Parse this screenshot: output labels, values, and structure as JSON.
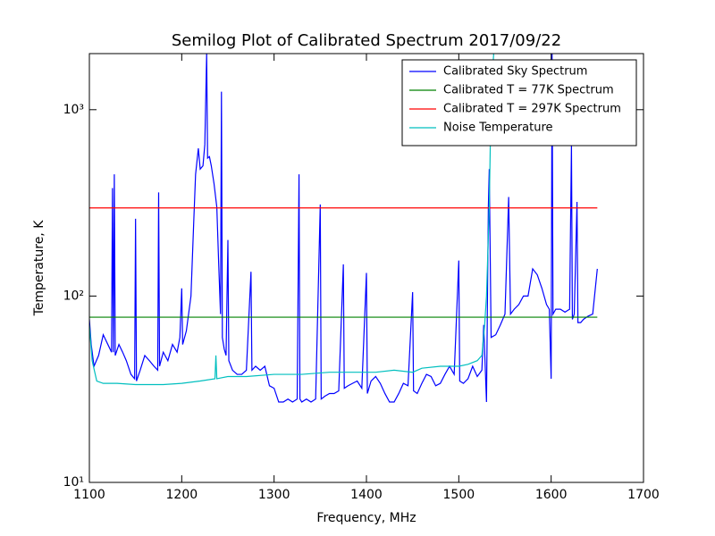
{
  "chart_data": {
    "type": "line",
    "title": "Semilog Plot of Calibrated Spectrum 2017/09/22",
    "x_label": "Frequency, MHz",
    "y_label": "Temperature, K",
    "log_y": true,
    "legend": "upper right",
    "xlim": [
      1100,
      1700
    ],
    "xticks": [
      1100,
      1200,
      1300,
      1400,
      1500,
      1600,
      1700
    ],
    "ylim": [
      10,
      2000
    ],
    "yticks": [
      {
        "value": 10,
        "label": "10¹"
      },
      {
        "value": 100,
        "label": "10²"
      },
      {
        "value": 1000,
        "label": "10³"
      }
    ],
    "series": [
      {
        "name": "Calibrated Sky Spectrum",
        "color": "#0000ff",
        "x": [
          1100,
          1102,
          1105,
          1110,
          1115,
          1120,
          1124,
          1125,
          1126,
          1127,
          1128,
          1132,
          1136,
          1140,
          1145,
          1149,
          1150,
          1151,
          1155,
          1160,
          1165,
          1170,
          1174,
          1175,
          1176,
          1180,
          1185,
          1190,
          1195,
          1198,
          1200,
          1201,
          1205,
          1210,
          1213,
          1215,
          1218,
          1220,
          1223,
          1225,
          1227,
          1228,
          1230,
          1232,
          1235,
          1238,
          1240,
          1242,
          1243,
          1244,
          1246,
          1248,
          1250,
          1251,
          1255,
          1260,
          1265,
          1270,
          1275,
          1276,
          1280,
          1285,
          1290,
          1295,
          1300,
          1305,
          1310,
          1315,
          1320,
          1325,
          1327,
          1328,
          1330,
          1335,
          1340,
          1345,
          1350,
          1351,
          1355,
          1360,
          1365,
          1370,
          1375,
          1376,
          1380,
          1385,
          1390,
          1395,
          1400,
          1401,
          1405,
          1410,
          1415,
          1420,
          1425,
          1430,
          1435,
          1440,
          1445,
          1450,
          1451,
          1455,
          1460,
          1465,
          1470,
          1475,
          1480,
          1485,
          1490,
          1495,
          1500,
          1501,
          1505,
          1510,
          1515,
          1520,
          1525,
          1527,
          1530,
          1532,
          1533,
          1535,
          1540,
          1545,
          1550,
          1554,
          1556,
          1560,
          1565,
          1570,
          1575,
          1580,
          1585,
          1590,
          1595,
          1598,
          1600,
          1601,
          1602,
          1605,
          1610,
          1615,
          1620,
          1622,
          1623,
          1625,
          1628,
          1629,
          1632,
          1635,
          1640,
          1645,
          1650
        ],
        "values": [
          75,
          55,
          42,
          48,
          62,
          55,
          50,
          380,
          50,
          450,
          48,
          55,
          50,
          45,
          38,
          36,
          260,
          35,
          40,
          48,
          45,
          42,
          40,
          360,
          42,
          50,
          45,
          55,
          50,
          60,
          110,
          55,
          65,
          100,
          250,
          450,
          620,
          480,
          500,
          650,
          2000,
          550,
          560,
          500,
          400,
          300,
          150,
          80,
          1250,
          60,
          52,
          48,
          200,
          45,
          40,
          38,
          38,
          40,
          135,
          40,
          42,
          40,
          42,
          33,
          32,
          27,
          27,
          28,
          27,
          28,
          450,
          28,
          27,
          28,
          27,
          28,
          310,
          28,
          29,
          30,
          30,
          31,
          148,
          32,
          33,
          34,
          35,
          32,
          133,
          30,
          35,
          37,
          34,
          30,
          27,
          27,
          30,
          34,
          33,
          105,
          31,
          30,
          34,
          38,
          37,
          33,
          34,
          38,
          42,
          38,
          155,
          35,
          34,
          36,
          42,
          37,
          40,
          70,
          27,
          300,
          480,
          60,
          62,
          70,
          80,
          340,
          80,
          85,
          90,
          100,
          100,
          140,
          130,
          110,
          90,
          85,
          36,
          2000,
          80,
          85,
          85,
          82,
          85,
          650,
          75,
          80,
          320,
          72,
          72,
          75,
          78,
          80,
          140
        ]
      },
      {
        "name": "Calibrated T = 77K Spectrum",
        "color": "#008000",
        "x": [
          1100,
          1650
        ],
        "values": [
          77,
          77
        ]
      },
      {
        "name": "Calibrated T = 297K Spectrum",
        "color": "#ff0000",
        "x": [
          1100,
          1650
        ],
        "values": [
          297,
          297
        ]
      },
      {
        "name": "Noise Temperature",
        "color": "#00bfbf",
        "x": [
          1100,
          1103,
          1108,
          1115,
          1130,
          1150,
          1180,
          1200,
          1220,
          1236,
          1237,
          1238,
          1250,
          1270,
          1300,
          1330,
          1360,
          1390,
          1410,
          1430,
          1450,
          1460,
          1480,
          1500,
          1510,
          1520,
          1525,
          1528,
          1530,
          1533,
          1535,
          1540
        ],
        "values": [
          70,
          45,
          35,
          34,
          34,
          33.5,
          33.5,
          34,
          35,
          36,
          48,
          36,
          37,
          37,
          38,
          38,
          39,
          39,
          39,
          40,
          39,
          41,
          42,
          42,
          43,
          45,
          48,
          70,
          100,
          300,
          1200,
          3000
        ]
      }
    ]
  }
}
